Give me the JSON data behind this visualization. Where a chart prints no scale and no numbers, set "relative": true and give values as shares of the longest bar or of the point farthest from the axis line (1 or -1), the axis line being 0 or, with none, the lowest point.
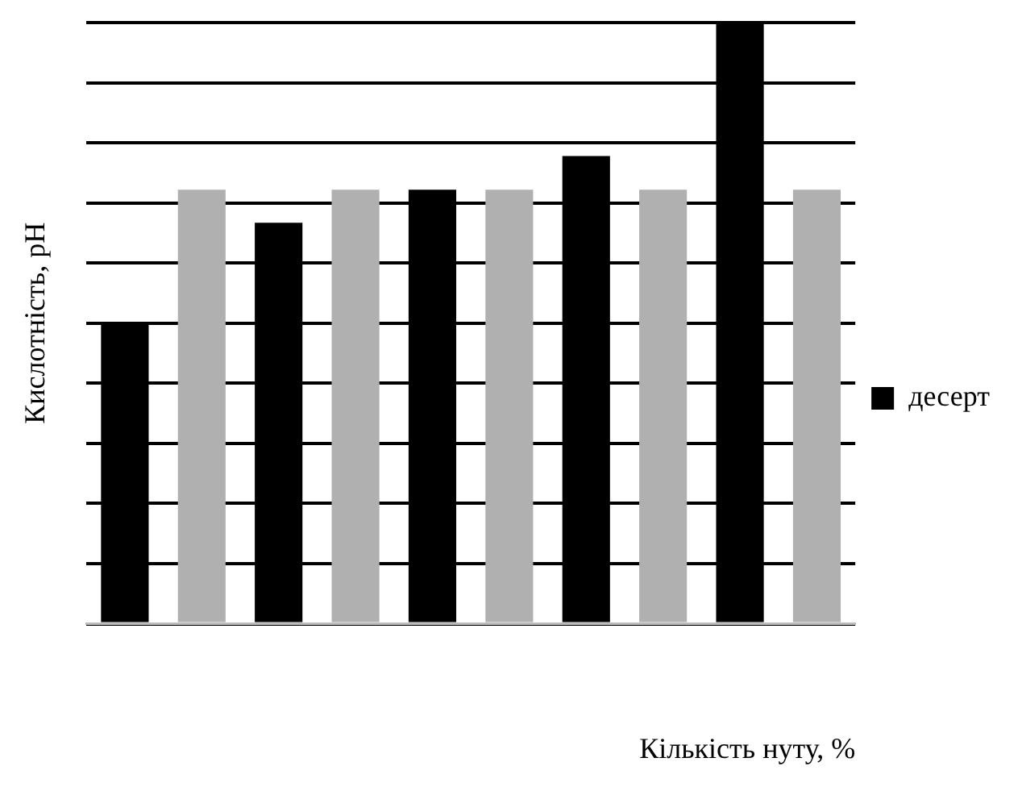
{
  "chart_data": {
    "type": "bar",
    "xlabel": "Кількість нуту, %",
    "ylabel": "Кислотність, pH",
    "relative": true,
    "categories": [
      null,
      null,
      null,
      null,
      null
    ],
    "series": [
      {
        "name": "десерт",
        "color": "#000000",
        "values": [
          0.5,
          0.667,
          0.722,
          0.778,
          1
        ]
      },
      {
        "color": "#b0b0b0",
        "values": [
          0.722,
          0.722,
          0.722,
          0.722,
          0.722
        ]
      }
    ],
    "grid": "y",
    "legend": "right"
  }
}
